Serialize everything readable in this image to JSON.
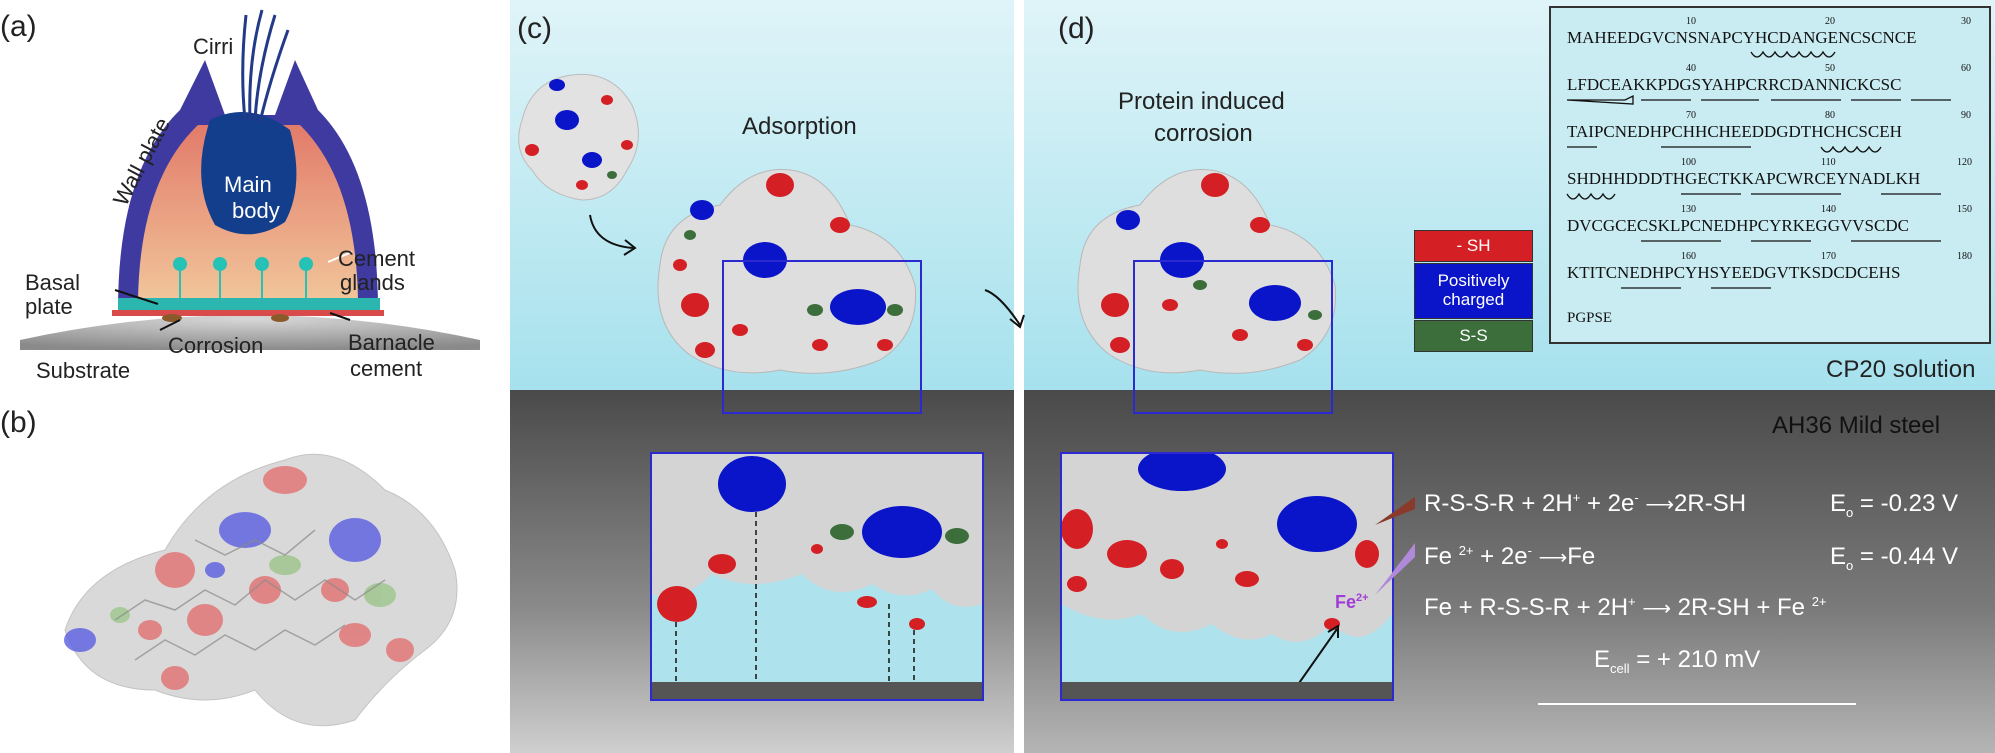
{
  "panels": {
    "a": "(a)",
    "b": "(b)",
    "c": "(c)",
    "d": "(d)"
  },
  "panel_a": {
    "cirri": "Cirri",
    "wall_plate": "Wall plate",
    "main_body_1": "Main",
    "main_body_2": "body",
    "cement_glands_1": "Cement",
    "cement_glands_2": "glands",
    "basal_plate_1": "Basal",
    "basal_plate_2": "plate",
    "corrosion": "Corrosion",
    "barnacle_cement_1": "Barnacle",
    "barnacle_cement_2": "cement",
    "substrate": "Substrate"
  },
  "panel_c": {
    "adsorption": "Adsorption"
  },
  "panel_d": {
    "title_1": "Protein induced",
    "title_2": "corrosion",
    "fe_label": "Fe"
  },
  "legend": {
    "sh": "- SH",
    "positive_1": "Positively",
    "positive_2": "charged",
    "ss": "S-S",
    "colors": {
      "sh": "#d42025",
      "positive": "#0a14c8",
      "ss": "#3c6e3c"
    }
  },
  "environment": {
    "solution": "CP20 solution",
    "steel": "AH36 Mild steel"
  },
  "sequence": {
    "lines": [
      "MAHEEDGVCNSNAPCYHCDANGENCSCNCE",
      "LFDCEAKKPDGSYAHPCRRCDANNICKCSC",
      "TAIPCNEDHPCHHCHEEDDGDTHCHCSCEH",
      "SHDHHDDDTHGECTKKAPCWRCEYNADLKH",
      "DVCGCECSKLPCNEDHPCYRKEGGVVSCDC",
      "KTITCNEDHPCYHSYEEDGVTKSDCDCEHS",
      "PGPSE"
    ],
    "numbers": [
      "10",
      "20",
      "30",
      "40",
      "50",
      "60",
      "70",
      "80",
      "90",
      "100",
      "110",
      "120",
      "130",
      "140",
      "150",
      "160",
      "170",
      "180"
    ]
  },
  "equations": {
    "eq1": "R-S-S-R + 2H",
    "eq1_sup1": "+",
    "eq1_mid": " + 2e",
    "eq1_sup2": "-",
    "eq1_end": "2R-SH",
    "eq1_pot": "E",
    "eq1_sub": "o",
    "eq1_val": " = -0.23 V",
    "eq2": "Fe ",
    "eq2_sup1": "2+",
    "eq2_mid": " + 2e",
    "eq2_sup2": "-",
    "eq2_end": "Fe",
    "eq2_pot": "E",
    "eq2_sub": "o",
    "eq2_val": " = -0.44 V",
    "eq3": "Fe + R-S-S-R + 2H",
    "eq3_sup1": "+",
    "eq3_end": "2R-SH  + Fe ",
    "eq3_sup2": "2+",
    "ecell": "E",
    "ecell_sub": "cell",
    "ecell_val": " = + 210 mV"
  }
}
